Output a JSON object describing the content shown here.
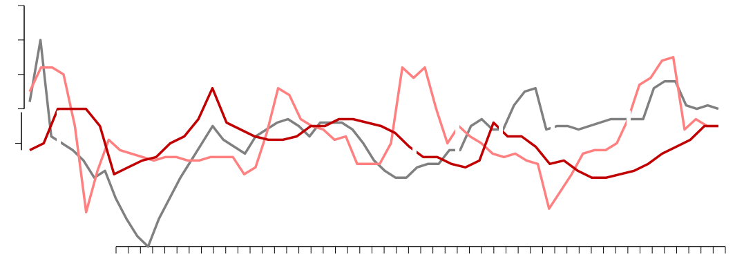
{
  "chart_data": {
    "type": "line",
    "title": "",
    "xlabel": "",
    "ylabel": "",
    "ylim": [
      -4,
      3
    ],
    "y_major_ticks": [
      -1,
      0,
      1,
      2,
      3
    ],
    "x_tick_count": 51,
    "grid": false,
    "legend": "none",
    "series": [
      {
        "color": "#808080",
        "values": [
          0.2,
          2.0,
          -0.8,
          -1.0,
          -1.2,
          -1.5,
          -2.0,
          -1.8,
          -2.6,
          -3.2,
          -3.7,
          -4.0,
          -3.2,
          -2.6,
          -2.0,
          -1.5,
          -1.0,
          -0.5,
          -0.9,
          -1.1,
          -1.3,
          -0.8,
          -0.6,
          -0.4,
          -0.3,
          -0.5,
          -0.8,
          -0.4,
          -0.4,
          -0.4,
          -0.6,
          -1.0,
          -1.5,
          -1.8,
          -2.0,
          -2.0,
          -1.7,
          -1.6,
          -1.6,
          -1.2,
          -1.2,
          -0.5,
          -0.3,
          -0.6,
          -0.6,
          0.1,
          0.5,
          0.6,
          -0.6,
          -0.5,
          -0.5,
          -0.6,
          -0.5,
          -0.4,
          -0.3,
          -0.3,
          -0.3,
          -0.3,
          0.6,
          0.8,
          0.8,
          0.1,
          0.0,
          0.1,
          0.0
        ]
      },
      {
        "color": "#ff8080",
        "values": [
          0.5,
          1.2,
          1.2,
          1.0,
          -0.5,
          -3.0,
          -1.8,
          -0.9,
          -1.2,
          -1.3,
          -1.4,
          -1.5,
          -1.4,
          -1.4,
          -1.5,
          -1.5,
          -1.4,
          -1.4,
          -1.4,
          -1.9,
          -1.7,
          -0.7,
          0.6,
          0.4,
          -0.3,
          -0.5,
          -0.6,
          -0.9,
          -0.8,
          -1.6,
          -1.6,
          -1.6,
          -1.0,
          1.2,
          0.9,
          1.2,
          0.0,
          -1.0,
          -0.5,
          -0.8,
          -1.0,
          -1.3,
          -1.4,
          -1.3,
          -1.5,
          -1.6,
          -2.9,
          -2.4,
          -1.9,
          -1.3,
          -1.2,
          -1.2,
          -1.0,
          -0.3,
          0.7,
          0.9,
          1.4,
          1.5,
          -0.6,
          -0.3,
          -0.5,
          -0.5
        ]
      },
      {
        "color": "#c00000",
        "values": [
          -1.2,
          -1.0,
          0.0,
          0.0,
          0.0,
          -0.5,
          -1.9,
          -1.7,
          -1.5,
          -1.4,
          -1.0,
          -0.8,
          -0.3,
          0.6,
          -0.4,
          -0.6,
          -0.8,
          -0.9,
          -0.9,
          -0.8,
          -0.5,
          -0.5,
          -0.3,
          -0.3,
          -0.4,
          -0.5,
          -0.7,
          -1.1,
          -1.4,
          -1.4,
          -1.6,
          -1.7,
          -1.5,
          -0.4,
          -0.8,
          -0.8,
          -1.1,
          -1.6,
          -1.5,
          -1.8,
          -2.0,
          -2.0,
          -1.9,
          -1.8,
          -1.6,
          -1.3,
          -1.1,
          -0.9,
          -0.5,
          -0.5
        ]
      }
    ]
  }
}
